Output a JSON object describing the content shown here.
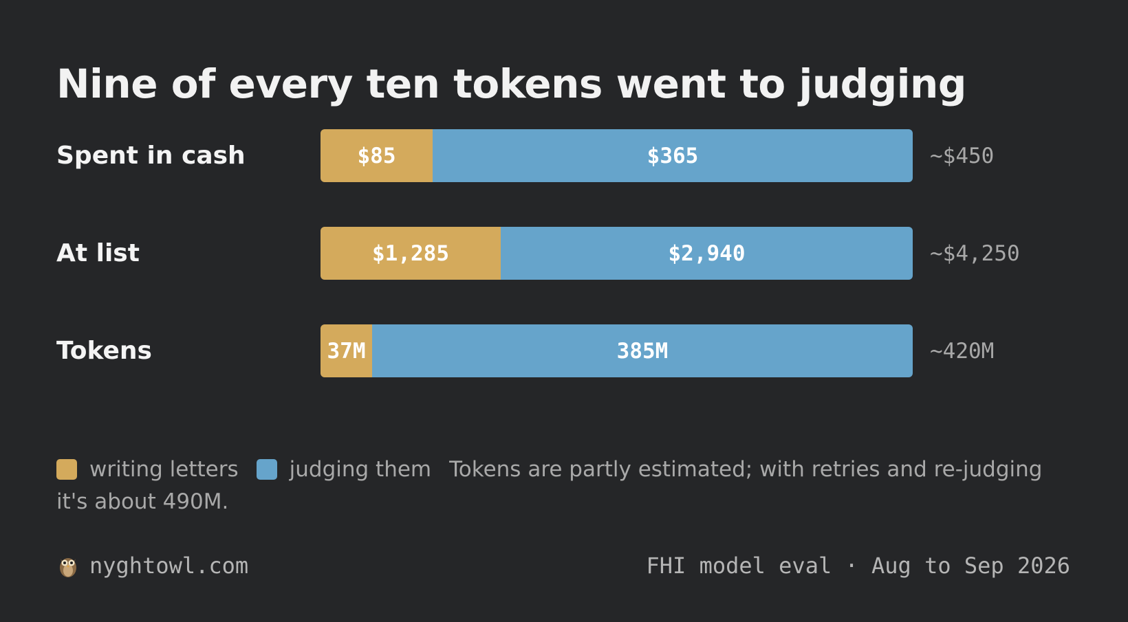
{
  "title": "Nine of every ten tokens went to judging",
  "colors": {
    "writing": "#d4aa5c",
    "judging": "#66a4cb",
    "background": "#252628"
  },
  "chart_data": {
    "type": "bar",
    "orientation": "horizontal",
    "stacked": true,
    "normalized": true,
    "categories": [
      "Spent in cash",
      "At list",
      "Tokens"
    ],
    "series": [
      {
        "name": "writing letters",
        "values": [
          85,
          1285,
          37
        ],
        "labels": [
          "$85",
          "$1,285",
          "37M"
        ]
      },
      {
        "name": "judging them",
        "values": [
          365,
          2940,
          385
        ],
        "labels": [
          "$365",
          "$2,940",
          "385M"
        ]
      }
    ],
    "totals": [
      "~$450",
      "~$4,250",
      "~420M"
    ],
    "legend": "bottom-left"
  },
  "legend": {
    "items": [
      "writing letters",
      "judging them"
    ],
    "note": "Tokens are partly estimated; with retries and re-judging it's about 490M."
  },
  "footer": {
    "site": "nyghtowl.com",
    "site_icon": "owl-icon",
    "source": "FHI model eval · Aug to Sep 2026"
  }
}
